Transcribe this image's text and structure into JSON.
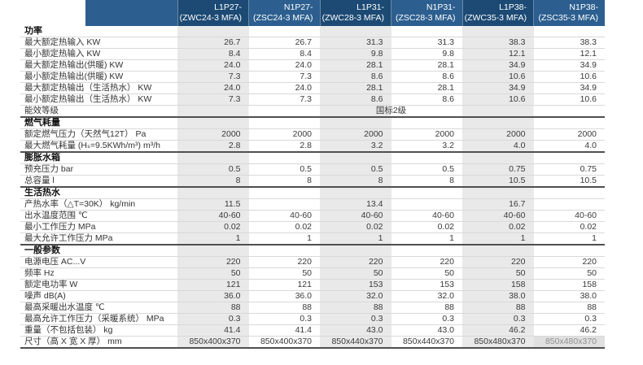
{
  "colors": {
    "header_dark": "#1c4a74",
    "header_medium": "#2c5f8f",
    "stripe": "#e9e9e9"
  },
  "header": {
    "columns": [
      {
        "model": "L1P27-",
        "variant": "(ZWC24-3 MFA)"
      },
      {
        "model": "N1P27-",
        "variant": "(ZSC24-3 MFA)"
      },
      {
        "model": "L1P31-",
        "variant": "(ZWC28-3 MFA)"
      },
      {
        "model": "N1P31-",
        "variant": "(ZSC28-3 MFA)"
      },
      {
        "model": "L1P38-",
        "variant": "(ZWC35-3 MFA)"
      },
      {
        "model": "N1P38-",
        "variant": "(ZSC35-3 MFA)"
      }
    ]
  },
  "sections": [
    {
      "title": "功率",
      "rows": [
        {
          "label": "最大额定热输入 KW",
          "values": [
            "26.7",
            "26.7",
            "31.3",
            "31.3",
            "38.3",
            "38.3"
          ]
        },
        {
          "label": "最小额定热输入 KW",
          "values": [
            "8.4",
            "8.4",
            "9.8",
            "9.8",
            "12.1",
            "12.1"
          ]
        },
        {
          "label": "最大额定热输出(供暖) KW",
          "values": [
            "24.0",
            "24.0",
            "28.1",
            "28.1",
            "34.9",
            "34.9"
          ]
        },
        {
          "label": "最小额定热输出(供暖) KW",
          "values": [
            "7.3",
            "7.3",
            "8.6",
            "8.6",
            "10.6",
            "10.6"
          ]
        },
        {
          "label": "最大额定热输出（生活热水） KW",
          "values": [
            "24.0",
            "24.0",
            "28.1",
            "28.1",
            "34.9",
            "34.9"
          ]
        },
        {
          "label": "最小额定热输出（生活热水） KW",
          "values": [
            "7.3",
            "7.3",
            "8.6",
            "8.6",
            "10.6",
            "10.6"
          ]
        },
        {
          "label": "能效等级",
          "span_value": "国标2级"
        }
      ]
    },
    {
      "title": "燃气耗量",
      "rows": [
        {
          "label": "额定燃气压力（天然气12T） Pa",
          "values": [
            "2000",
            "2000",
            "2000",
            "2000",
            "2000",
            "2000"
          ]
        },
        {
          "label": "最大燃气耗量 (Hₛ=9.5KWh/m³) m³/h",
          "values": [
            "2.8",
            "2.8",
            "3.2",
            "3.2",
            "4.0",
            "4.0"
          ]
        }
      ]
    },
    {
      "title": "膨胀水箱",
      "rows": [
        {
          "label": "预充压力 bar",
          "values": [
            "0.5",
            "0.5",
            "0.5",
            "0.5",
            "0.75",
            "0.75"
          ]
        },
        {
          "label": "总容量 l",
          "values": [
            "8",
            "8",
            "8",
            "8",
            "10.5",
            "10.5"
          ]
        }
      ]
    },
    {
      "title": "生活热水",
      "rows": [
        {
          "label": "产热水率（△T=30K）  kg/min",
          "values": [
            "11.5",
            "",
            "13.4",
            "",
            "16.7",
            ""
          ]
        },
        {
          "label": "出水温度范围 ℃",
          "values": [
            "40-60",
            "40-60",
            "40-60",
            "40-60",
            "40-60",
            "40-60"
          ]
        },
        {
          "label": "最小工作压力 MPa",
          "values": [
            "0.02",
            "0.02",
            "0.02",
            "0.02",
            "0.02",
            "0.02"
          ]
        },
        {
          "label": "最大允许工作压力 MPa",
          "values": [
            "1",
            "1",
            "1",
            "1",
            "1",
            "1"
          ]
        }
      ]
    },
    {
      "title": "一般参数",
      "rows": [
        {
          "label": "电源电压 AC...V",
          "values": [
            "220",
            "220",
            "220",
            "220",
            "220",
            "220"
          ]
        },
        {
          "label": "频率 Hz",
          "values": [
            "50",
            "50",
            "50",
            "50",
            "50",
            "50"
          ]
        },
        {
          "label": "额定电功率 W",
          "values": [
            "121",
            "121",
            "153",
            "153",
            "158",
            "158"
          ]
        },
        {
          "label": "噪声 dB(A)",
          "values": [
            "36.0",
            "36.0",
            "32.0",
            "32.0",
            "38.0",
            "38.0"
          ]
        },
        {
          "label": "最高采暖出水温度 ℃",
          "values": [
            "88",
            "88",
            "88",
            "88",
            "88",
            "88"
          ]
        },
        {
          "label": "最高允许工作压力（采暖系统） MPa",
          "values": [
            "0.3",
            "0.3",
            "0.3",
            "0.3",
            "0.3",
            "0.3"
          ]
        },
        {
          "label": "重量（不包括包装） kg",
          "values": [
            "41.4",
            "41.4",
            "43.0",
            "43.0",
            "46.2",
            "46.2"
          ]
        },
        {
          "label": "尺寸（高 X 宽 X 厚）  mm",
          "values": [
            "850x400x370",
            "850x400x370",
            "850x440x370",
            "850x440x370",
            "850x480x370",
            "850x480x370"
          ]
        }
      ]
    }
  ]
}
